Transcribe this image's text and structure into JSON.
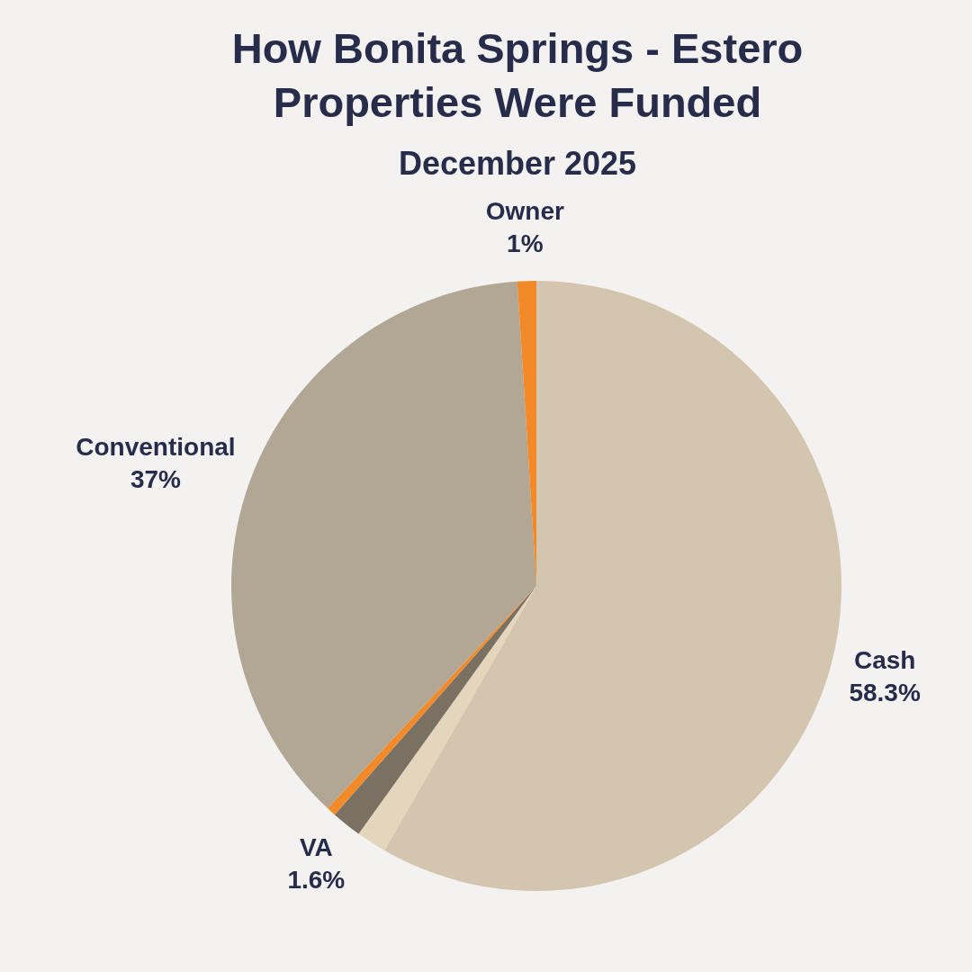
{
  "chart_data": {
    "type": "pie",
    "title": "How Bonita Springs - Estero Properties Were Funded",
    "subtitle": "December 2025",
    "categories": [
      "Cash",
      null,
      "VA",
      null,
      "Conventional",
      "Owner"
    ],
    "values": [
      58.3,
      1.6,
      1.6,
      0.5,
      37,
      1
    ],
    "colors": [
      "#d4c5ae",
      "#e3d6bd",
      "#7b7163",
      "#f28a2a",
      "#b2a794",
      "#f28a2a"
    ],
    "value_labels": [
      "58.3%",
      null,
      "1.6%",
      null,
      "37%",
      "1%"
    ]
  }
}
